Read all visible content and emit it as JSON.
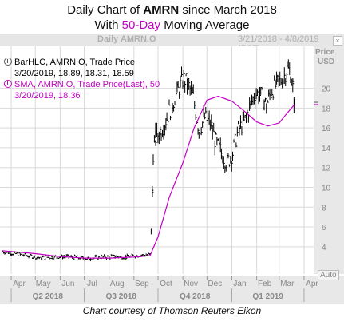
{
  "title_line1_pre": "Daily Chart of ",
  "title_line1_ticker": "AMRN",
  "title_line1_post": " since March 2018",
  "title_line2_pre": "With ",
  "title_line2_hl": "50-Day",
  "title_line2_post": " Moving Average",
  "panel": {
    "name": "Daily AMRN.O",
    "range": "3/21/2018 - 4/8/2019 (EST)"
  },
  "legend": {
    "bar_line1": "BarHLC, AMRN.O, Trade Price",
    "bar_line2": "3/20/2019, 18.89, 18.31, 18.59",
    "sma_line1": "SMA, AMRN.O, Trade Price(Last),  50",
    "sma_line2": "3/20/2019, 18.36"
  },
  "y_axis": {
    "title": "Price",
    "unit": "USD"
  },
  "auto_label": "Auto",
  "footer": "Chart courtesy of Thomson Reuters Eikon",
  "colors": {
    "price": "#000000",
    "sma": "#c400c4",
    "grid": "#d9d9d9",
    "axis_bg": "#e8e8e8"
  },
  "chart_data": {
    "type": "line",
    "title": "Daily Chart of AMRN since March 2018",
    "subtitle": "With 50-Day Moving Average",
    "ylabel": "Price USD",
    "ylim": [
      1,
      24
    ],
    "yticks": [
      4,
      6,
      8,
      10,
      12,
      14,
      16,
      18,
      20
    ],
    "grid": true,
    "x_month_labels": [
      "Apr",
      "May",
      "Jun",
      "Jul",
      "Aug",
      "Sep",
      "Oct",
      "Nov",
      "Dec",
      "Jan",
      "Feb",
      "Mar",
      "Apr"
    ],
    "x_quarter_labels": [
      "Q2 2018",
      "Q3 2018",
      "Q4 2018",
      "Q1 2019"
    ],
    "series": [
      {
        "name": "BarHLC, AMRN.O, Trade Price",
        "style": "hlc_bars",
        "x": [
          "2018-03-21",
          "2018-04-05",
          "2018-04-20",
          "2018-05-07",
          "2018-05-22",
          "2018-06-06",
          "2018-06-21",
          "2018-07-06",
          "2018-07-23",
          "2018-08-07",
          "2018-08-22",
          "2018-09-06",
          "2018-09-21",
          "2018-09-24",
          "2018-09-25",
          "2018-09-28",
          "2018-10-05",
          "2018-10-12",
          "2018-10-19",
          "2018-10-26",
          "2018-11-02",
          "2018-11-07",
          "2018-11-14",
          "2018-11-21",
          "2018-11-28",
          "2018-12-05",
          "2018-12-12",
          "2018-12-19",
          "2018-12-26",
          "2019-01-02",
          "2019-01-09",
          "2019-01-16",
          "2019-01-23",
          "2019-01-30",
          "2019-02-06",
          "2019-02-13",
          "2019-02-20",
          "2019-02-27",
          "2019-03-06",
          "2019-03-11",
          "2019-03-15",
          "2019-03-18",
          "2019-03-20"
        ],
        "values": [
          3.5,
          3.3,
          3.1,
          2.9,
          2.95,
          3.0,
          2.9,
          2.8,
          2.95,
          3.0,
          2.95,
          3.1,
          3.2,
          9.5,
          13.5,
          15.0,
          15.8,
          17.0,
          18.5,
          19.8,
          21.0,
          20.5,
          19.0,
          15.8,
          17.0,
          16.5,
          14.5,
          13.5,
          12.5,
          13.5,
          15.8,
          16.5,
          18.0,
          19.5,
          19.3,
          18.3,
          19.8,
          20.5,
          21.0,
          22.0,
          21.5,
          20.0,
          18.59
        ]
      },
      {
        "name": "SMA, AMRN.O, Trade Price(Last),  50",
        "style": "line",
        "x": [
          "2018-03-21",
          "2018-05-01",
          "2018-06-01",
          "2018-07-01",
          "2018-08-01",
          "2018-09-01",
          "2018-09-21",
          "2018-10-01",
          "2018-10-15",
          "2018-11-01",
          "2018-11-15",
          "2018-12-01",
          "2018-12-15",
          "2019-01-01",
          "2019-01-15",
          "2019-02-01",
          "2019-02-15",
          "2019-03-01",
          "2019-03-10",
          "2019-03-20"
        ],
        "values": [
          3.6,
          3.3,
          3.0,
          2.85,
          2.85,
          2.95,
          3.1,
          5.0,
          9.0,
          12.5,
          16.0,
          18.8,
          19.2,
          18.7,
          17.8,
          16.6,
          16.2,
          16.5,
          17.4,
          18.36
        ]
      }
    ],
    "last_values": {
      "high": 18.89,
      "low": 18.31,
      "close": 18.59,
      "sma": 18.36
    }
  }
}
